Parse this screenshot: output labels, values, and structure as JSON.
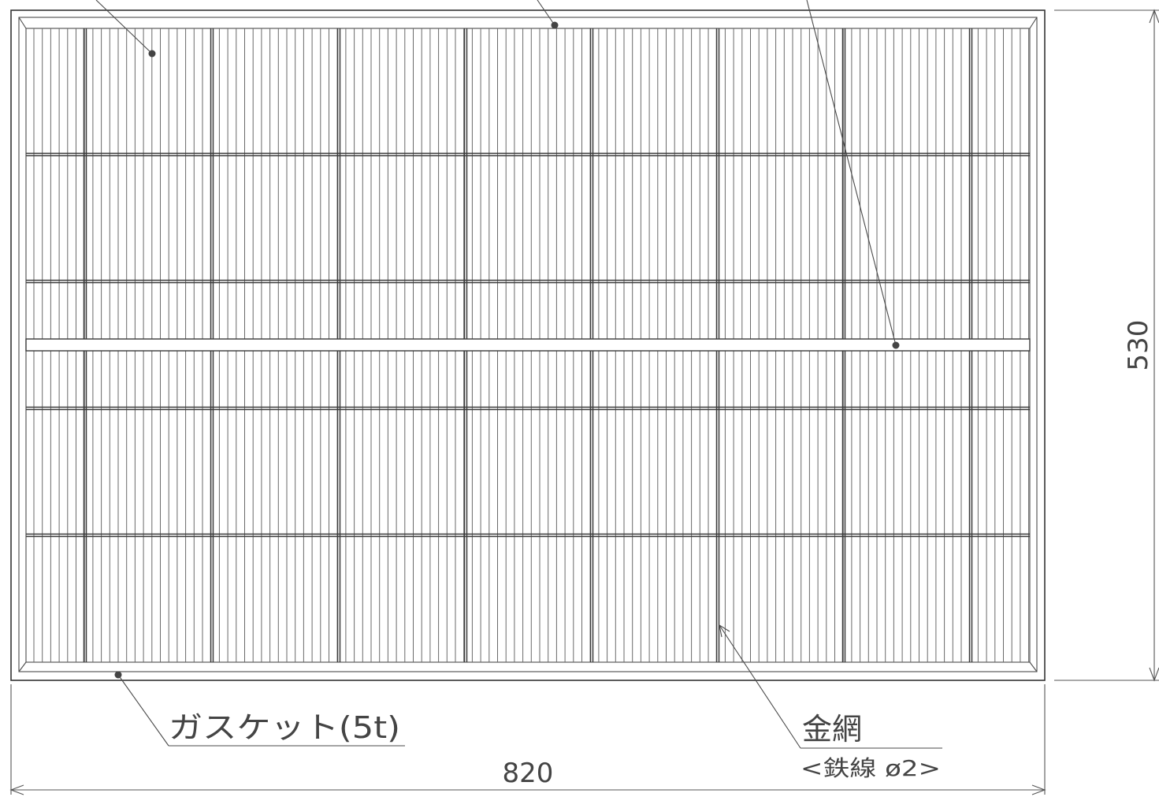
{
  "drawing": {
    "dimensions": {
      "width": "820",
      "height": "530"
    },
    "callouts": {
      "gasket": "ガスケット(5t)",
      "mesh": "金網",
      "mesh_spec": "<鉄線 ø2>"
    }
  }
}
